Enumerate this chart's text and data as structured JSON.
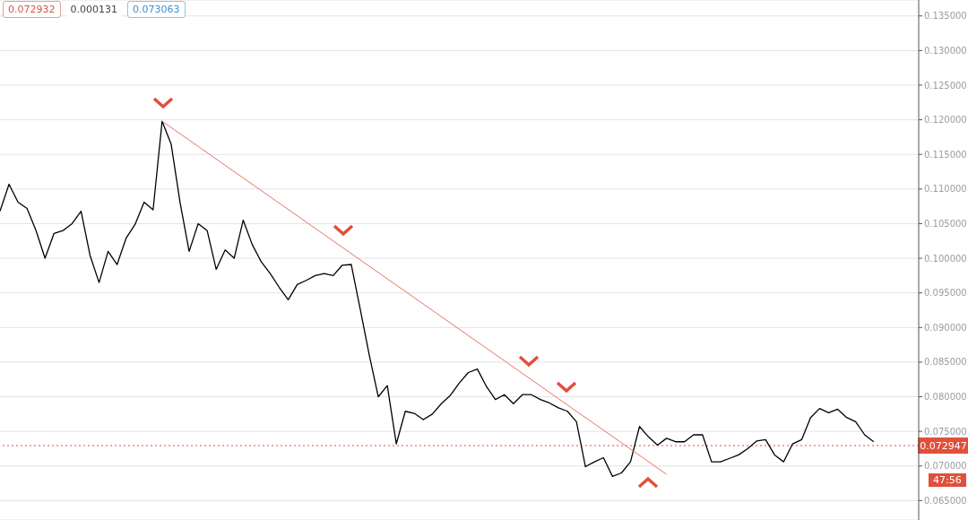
{
  "chart_data": {
    "type": "line",
    "categories": [
      null,
      null,
      null,
      null,
      null,
      null,
      null,
      null,
      null,
      null,
      null,
      null,
      null,
      null,
      null,
      null,
      null,
      null,
      null,
      null,
      null,
      null,
      null,
      null,
      null,
      null,
      null,
      null,
      null,
      null,
      null,
      null,
      null,
      null,
      null,
      null,
      null,
      null,
      null,
      null,
      null,
      null,
      null,
      null,
      null,
      null,
      null,
      null,
      null,
      null,
      null,
      null,
      null,
      null,
      null,
      null,
      null,
      null,
      null,
      null,
      null,
      null,
      null,
      null,
      null,
      null,
      null,
      null,
      null,
      null,
      null,
      null,
      null,
      null,
      null,
      null,
      null,
      null,
      null,
      null,
      null,
      null,
      null,
      null,
      null,
      null,
      null,
      null,
      null,
      null,
      null,
      null,
      null,
      null,
      null,
      null,
      null,
      null,
      null,
      null,
      null,
      null,
      null
    ],
    "series": [
      {
        "color": "#000000",
        "values": [
          0.1068,
          0.1107,
          0.1081,
          0.1072,
          0.104,
          0.1,
          0.1036,
          0.104,
          0.105,
          0.1068,
          0.1004,
          0.0965,
          0.101,
          0.0991,
          0.1029,
          0.1049,
          0.1081,
          0.107,
          0.1198,
          0.1165,
          0.108,
          0.101,
          0.105,
          0.104,
          0.0984,
          0.1012,
          0.1,
          0.1055,
          0.102,
          0.0995,
          0.0978,
          0.0958,
          0.094,
          0.0962,
          0.0968,
          0.0975,
          0.0978,
          0.0975,
          0.099,
          0.0991,
          0.0926,
          0.086,
          0.08,
          0.0816,
          0.0732,
          0.0779,
          0.0776,
          0.0767,
          0.0775,
          0.079,
          0.0802,
          0.082,
          0.0835,
          0.084,
          0.0815,
          0.0796,
          0.0803,
          0.079,
          0.0803,
          0.0803,
          0.0796,
          0.0791,
          0.0784,
          0.0779,
          0.0764,
          0.0699,
          0.0706,
          0.0712,
          0.0685,
          0.069,
          0.0706,
          0.0757,
          0.0742,
          0.073,
          0.074,
          0.0735,
          0.0735,
          0.0745,
          0.0745,
          0.0706,
          0.0706,
          0.0711,
          0.0716,
          0.0725,
          0.0736,
          0.0738,
          0.0716,
          0.0706,
          0.0732,
          0.0738,
          0.077,
          0.0783,
          0.0777,
          0.0782,
          0.077,
          0.0764,
          0.0745,
          0.0735,
          null,
          null,
          null,
          null,
          null
        ]
      },
      {
        "type": "line",
        "color": "#e57366",
        "values": [
          null,
          null,
          null,
          null,
          null,
          null,
          null,
          null,
          null,
          null,
          null,
          null,
          null,
          null,
          null,
          null,
          null,
          null,
          0.1198,
          null,
          null,
          null,
          null,
          null,
          null,
          null,
          null,
          null,
          null,
          null,
          null,
          null,
          null,
          null,
          null,
          null,
          null,
          null,
          null,
          null,
          null,
          null,
          null,
          null,
          null,
          null,
          null,
          null,
          null,
          null,
          null,
          null,
          null,
          null,
          null,
          null,
          null,
          null,
          null,
          null,
          null,
          null,
          null,
          null,
          null,
          null,
          null,
          null,
          null,
          null,
          null,
          null,
          null,
          null,
          0.0688,
          null,
          null,
          null,
          null,
          null,
          null,
          null,
          null,
          null,
          null,
          null,
          null,
          null,
          null,
          null,
          null,
          null,
          null,
          null,
          null,
          null,
          null,
          null,
          null,
          null,
          null,
          null,
          null
        ]
      }
    ],
    "ylim": [
      0.0622,
      0.1373
    ],
    "yticks": [
      {
        "value": 0.065,
        "label": "0.065000"
      },
      {
        "value": 0.07,
        "label": "0.070000"
      },
      {
        "value": 0.075,
        "label": "0.075000"
      },
      {
        "value": 0.08,
        "label": "0.080000"
      },
      {
        "value": 0.085,
        "label": "0.085000"
      },
      {
        "value": 0.09,
        "label": "0.090000"
      },
      {
        "value": 0.095,
        "label": "0.095000"
      },
      {
        "value": 0.1,
        "label": "0.100000"
      },
      {
        "value": 0.105,
        "label": "0.105000"
      },
      {
        "value": 0.11,
        "label": "0.110000"
      },
      {
        "value": 0.115,
        "label": "0.115000"
      },
      {
        "value": 0.12,
        "label": "0.120000"
      },
      {
        "value": 0.125,
        "label": "0.125000"
      },
      {
        "value": 0.13,
        "label": "0.130000"
      },
      {
        "value": 0.135,
        "label": "0.135000"
      }
    ],
    "tick_labels": "y",
    "grid": "y",
    "marker": "none",
    "ref_lines": [
      {
        "axis": "y",
        "value": 0.072947,
        "label": "0.072947",
        "color": "#e0503a",
        "line_style": "dotted"
      }
    ],
    "annotations": [
      "0.072932",
      "0.000131",
      "0.073063",
      "47:56"
    ]
  }
}
